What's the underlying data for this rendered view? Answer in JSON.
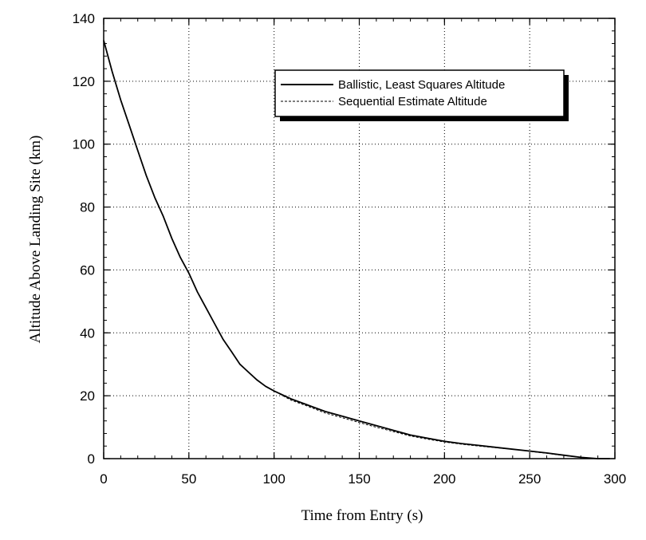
{
  "chart_data": {
    "type": "line",
    "xlabel": "Time from Entry (s)",
    "ylabel": "Altitude Above Landing Site (km)",
    "xlim": [
      0,
      300
    ],
    "ylim": [
      0,
      140
    ],
    "x_ticks": [
      0,
      50,
      100,
      150,
      200,
      250,
      300
    ],
    "y_ticks": [
      0,
      20,
      40,
      60,
      80,
      100,
      120,
      140
    ],
    "grid": true,
    "legend_placement": "top-right",
    "series": [
      {
        "name": "Ballistic, Least Squares Altitude",
        "style": "solid",
        "x": [
          0,
          5,
          10,
          15,
          20,
          25,
          30,
          35,
          40,
          45,
          50,
          55,
          60,
          65,
          70,
          75,
          80,
          85,
          90,
          95,
          100,
          110,
          120,
          130,
          140,
          150,
          160,
          170,
          180,
          190,
          200,
          210,
          220,
          230,
          240,
          250,
          260,
          270,
          280,
          290,
          297
        ],
        "values": [
          133,
          123,
          114,
          106,
          98,
          90,
          83,
          77,
          70,
          64,
          59,
          53,
          48,
          43,
          38,
          34,
          30,
          27.5,
          25,
          23,
          21.5,
          19,
          17,
          15,
          13.5,
          12,
          10.5,
          9,
          7.5,
          6.5,
          5.5,
          4.8,
          4.2,
          3.6,
          3,
          2.4,
          1.8,
          1.1,
          0.4,
          0,
          0
        ]
      },
      {
        "name": "Sequential Estimate Altitude",
        "style": "dashed",
        "x": [
          0,
          5,
          10,
          15,
          20,
          25,
          30,
          35,
          40,
          45,
          50,
          55,
          60,
          65,
          70,
          75,
          80,
          85,
          90,
          95,
          100,
          110,
          120,
          130,
          140,
          150,
          160,
          170,
          180,
          190,
          200,
          210,
          220,
          230,
          240,
          250,
          260,
          270,
          280,
          290,
          297
        ],
        "values": [
          133,
          123,
          114,
          106,
          98,
          90,
          83,
          77,
          70,
          64,
          59,
          53,
          48,
          43,
          38,
          34,
          30,
          27.5,
          25,
          23,
          21.5,
          18.6,
          16.6,
          14.5,
          13,
          11.5,
          10,
          8.6,
          7.2,
          6.2,
          5.3,
          4.6,
          4,
          3.5,
          3,
          2.3,
          1.7,
          1,
          0.4,
          0,
          0
        ]
      }
    ]
  }
}
